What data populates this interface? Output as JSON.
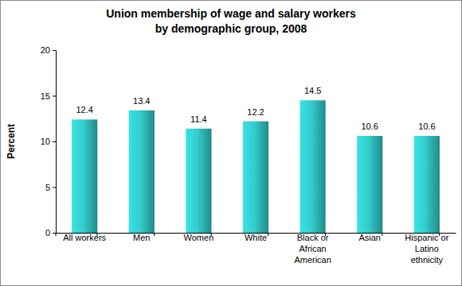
{
  "chart_data": {
    "type": "bar",
    "title": "Union membership of wage and salary workers by demographic group, 2008",
    "y_label": "Percent",
    "categories": [
      "All workers",
      "Men",
      "Women",
      "White",
      "Black or African American",
      "Asian",
      "Hispanic or Latino ethnicity"
    ],
    "values": [
      12.4,
      13.4,
      11.4,
      12.2,
      14.5,
      10.6,
      10.6
    ],
    "color": "#33cccc",
    "ylim": [
      0,
      20
    ],
    "yticks": [
      0,
      5,
      10,
      15,
      20
    ],
    "grid": false,
    "data_labels": true
  }
}
